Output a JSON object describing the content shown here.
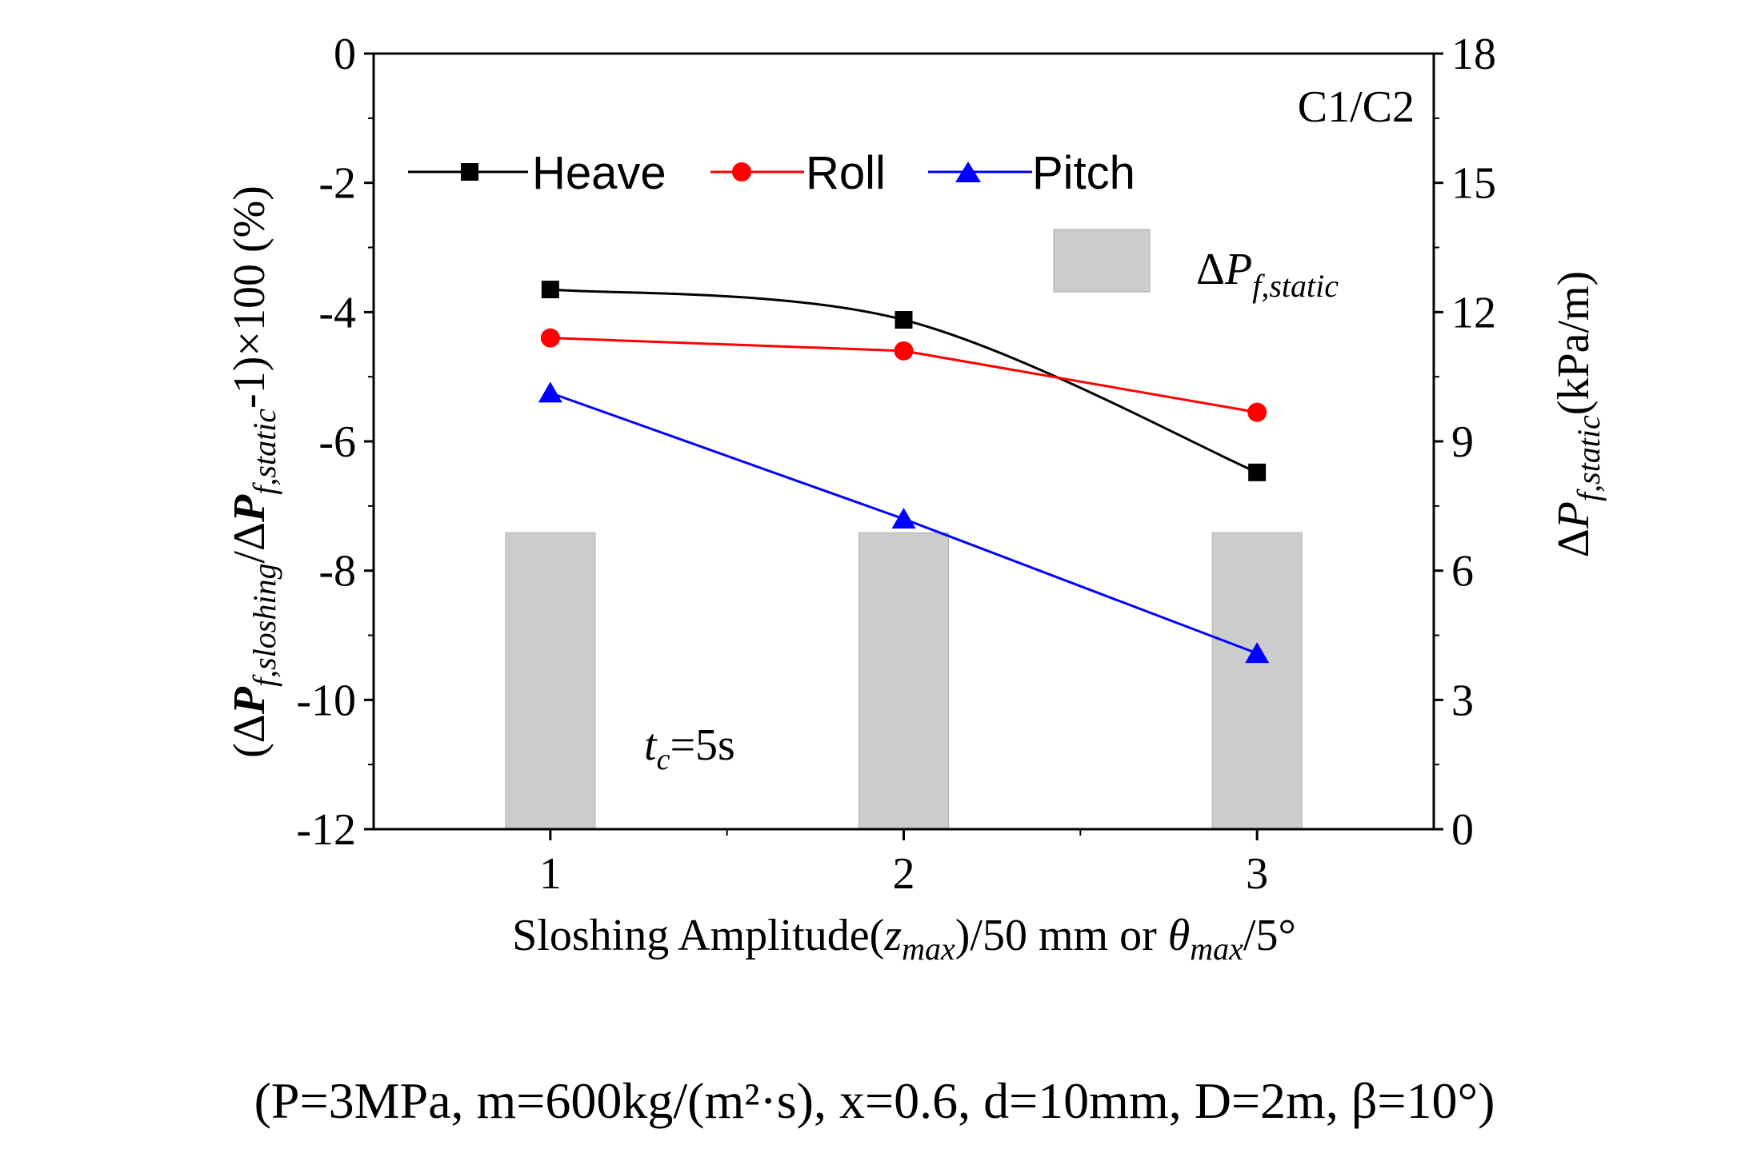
{
  "chart_data": {
    "type": "line",
    "panel_label": "C1/C2",
    "annotation_prefix": "t",
    "annotation_sub": "c",
    "annotation_suffix": "=5s",
    "x": [
      1,
      2,
      3
    ],
    "xlim": [
      0.5,
      3.5
    ],
    "x_ticks": [
      "1",
      "2",
      "3"
    ],
    "xlabel_prefix": "Sloshing Amplitude(",
    "xlabel_z": "z",
    "xlabel_max1": "max",
    "xlabel_mid": ")/50 mm or ",
    "xlabel_theta": "θ",
    "xlabel_max2": "max",
    "xlabel_suffix": "/5°",
    "ylabel_left_open": "(Δ",
    "ylabel_left_P1": "P",
    "ylabel_left_sub1": "f,sloshing",
    "ylabel_left_mid": "/Δ",
    "ylabel_left_P2": "P",
    "ylabel_left_sub2": "f,static",
    "ylabel_left_close": "-1)×100 (%)",
    "ylim_left": [
      -12,
      0
    ],
    "y_ticks_left": [
      "0",
      "-2",
      "-4",
      "-6",
      "-8",
      "-10",
      "-12"
    ],
    "ylabel_right_delta": "Δ",
    "ylabel_right_P": "P",
    "ylabel_right_sub": "f,static",
    "ylabel_right_unit": "(kPa/m)",
    "ylim_right": [
      0,
      18
    ],
    "y_ticks_right": [
      "18",
      "15",
      "12",
      "9",
      "6",
      "3",
      "0"
    ],
    "series": [
      {
        "name": "Heave",
        "color": "#000000",
        "marker": "square",
        "axis": "left",
        "values": [
          -3.65,
          -4.12,
          -6.48
        ]
      },
      {
        "name": "Roll",
        "color": "#ff0000",
        "marker": "circle",
        "axis": "left",
        "values": [
          -4.4,
          -4.6,
          -5.55
        ]
      },
      {
        "name": "Pitch",
        "color": "#0000ff",
        "marker": "triangle",
        "axis": "left",
        "values": [
          -5.25,
          -7.2,
          -9.28
        ]
      }
    ],
    "bars": {
      "name_delta": "Δ",
      "name_P": "P",
      "name_sub": "f,static",
      "axis": "right",
      "color": "#cccccc",
      "values": [
        6.88,
        6.88,
        6.88
      ]
    }
  },
  "caption": "(P=3MPa, m=600kg/(m²·s), x=0.6, d=10mm, D=2m, β=10°)"
}
